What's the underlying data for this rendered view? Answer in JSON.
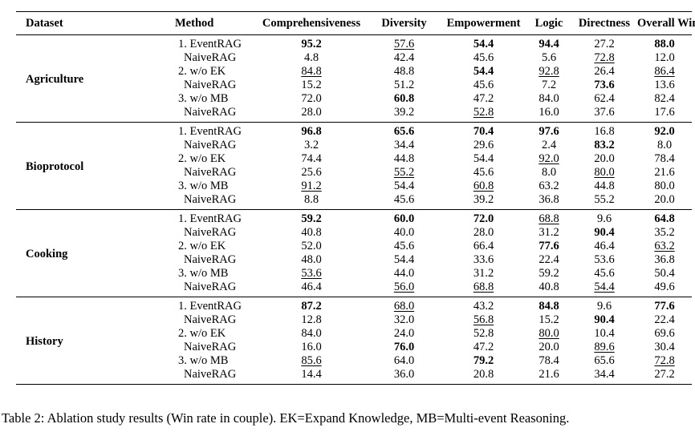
{
  "table": {
    "columns": [
      "Dataset",
      "Method",
      "Comprehensiveness",
      "Diversity",
      "Empowerment",
      "Logic",
      "Directness",
      "Overall Winner"
    ],
    "groups": [
      {
        "dataset": "Agriculture",
        "rows": [
          {
            "method": "1. EventRAG",
            "values": [
              "95.2",
              "57.6",
              "54.4",
              "94.4",
              "27.2",
              "88.0"
            ]
          },
          {
            "method": "NaiveRAG",
            "values": [
              "4.8",
              "42.4",
              "45.6",
              "5.6",
              "72.8",
              "12.0"
            ]
          },
          {
            "method": "2. w/o EK",
            "values": [
              "84.8",
              "48.8",
              "54.4",
              "92.8",
              "26.4",
              "86.4"
            ]
          },
          {
            "method": "NaiveRAG",
            "values": [
              "15.2",
              "51.2",
              "45.6",
              "7.2",
              "73.6",
              "13.6"
            ]
          },
          {
            "method": "3. w/o MB",
            "values": [
              "72.0",
              "60.8",
              "47.2",
              "84.0",
              "62.4",
              "82.4"
            ]
          },
          {
            "method": "NaiveRAG",
            "values": [
              "28.0",
              "39.2",
              "52.8",
              "16.0",
              "37.6",
              "17.6"
            ]
          }
        ]
      },
      {
        "dataset": "Bioprotocol",
        "rows": [
          {
            "method": "1. EventRAG",
            "values": [
              "96.8",
              "65.6",
              "70.4",
              "97.6",
              "16.8",
              "92.0"
            ]
          },
          {
            "method": "NaiveRAG",
            "values": [
              "3.2",
              "34.4",
              "29.6",
              "2.4",
              "83.2",
              "8.0"
            ]
          },
          {
            "method": "2. w/o EK",
            "values": [
              "74.4",
              "44.8",
              "54.4",
              "92.0",
              "20.0",
              "78.4"
            ]
          },
          {
            "method": "NaiveRAG",
            "values": [
              "25.6",
              "55.2",
              "45.6",
              "8.0",
              "80.0",
              "21.6"
            ]
          },
          {
            "method": "3. w/o MB",
            "values": [
              "91.2",
              "54.4",
              "60.8",
              "63.2",
              "44.8",
              "80.0"
            ]
          },
          {
            "method": "NaiveRAG",
            "values": [
              "8.8",
              "45.6",
              "39.2",
              "36.8",
              "55.2",
              "20.0"
            ]
          }
        ]
      },
      {
        "dataset": "Cooking",
        "rows": [
          {
            "method": "1. EventRAG",
            "values": [
              "59.2",
              "60.0",
              "72.0",
              "68.8",
              "9.6",
              "64.8"
            ]
          },
          {
            "method": "NaiveRAG",
            "values": [
              "40.8",
              "40.0",
              "28.0",
              "31.2",
              "90.4",
              "35.2"
            ]
          },
          {
            "method": "2. w/o EK",
            "values": [
              "52.0",
              "45.6",
              "66.4",
              "77.6",
              "46.4",
              "63.2"
            ]
          },
          {
            "method": "NaiveRAG",
            "values": [
              "48.0",
              "54.4",
              "33.6",
              "22.4",
              "53.6",
              "36.8"
            ]
          },
          {
            "method": "3. w/o MB",
            "values": [
              "53.6",
              "44.0",
              "31.2",
              "59.2",
              "45.6",
              "50.4"
            ]
          },
          {
            "method": "NaiveRAG",
            "values": [
              "46.4",
              "56.0",
              "68.8",
              "40.8",
              "54.4",
              "49.6"
            ]
          }
        ]
      },
      {
        "dataset": "History",
        "rows": [
          {
            "method": "1. EventRAG",
            "values": [
              "87.2",
              "68.0",
              "43.2",
              "84.8",
              "9.6",
              "77.6"
            ]
          },
          {
            "method": "NaiveRAG",
            "values": [
              "12.8",
              "32.0",
              "56.8",
              "15.2",
              "90.4",
              "22.4"
            ]
          },
          {
            "method": "2. w/o EK",
            "values": [
              "84.0",
              "24.0",
              "52.8",
              "80.0",
              "10.4",
              "69.6"
            ]
          },
          {
            "method": "NaiveRAG",
            "values": [
              "16.0",
              "76.0",
              "47.2",
              "20.0",
              "89.6",
              "30.4"
            ]
          },
          {
            "method": "3. w/o MB",
            "values": [
              "85.6",
              "64.0",
              "79.2",
              "78.4",
              "65.6",
              "72.8"
            ]
          },
          {
            "method": "NaiveRAG",
            "values": [
              "14.4",
              "36.0",
              "20.8",
              "21.6",
              "34.4",
              "27.2"
            ]
          }
        ]
      }
    ]
  },
  "caption": "Table 2: Ablation study results (Win rate in couple). EK=Expand Knowledge, MB=Multi-event Reasoning."
}
